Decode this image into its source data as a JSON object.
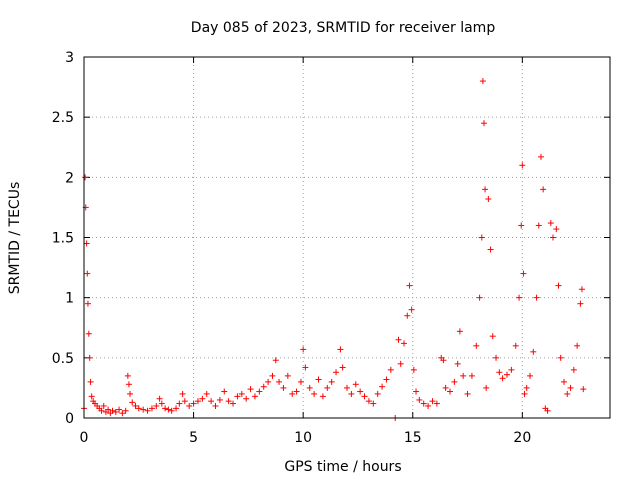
{
  "chart_data": {
    "type": "scatter",
    "title": "Day 085 of 2023, SRMTID for receiver lamp",
    "xlabel": "GPS time / hours",
    "ylabel": "SRMTID / TECUs",
    "xlim": [
      0,
      24
    ],
    "ylim": [
      0,
      3
    ],
    "xticks": [
      0,
      5,
      10,
      15,
      20
    ],
    "xtick_labels": [
      "0",
      "5",
      "10",
      "15",
      "20"
    ],
    "yticks": [
      0,
      0.5,
      1,
      1.5,
      2,
      2.5,
      3
    ],
    "ytick_labels": [
      "0",
      "0.5",
      "1",
      "1.5",
      "2",
      "2.5",
      "3"
    ],
    "grid": true,
    "marker": "+",
    "color": "#ff0000",
    "series": [
      {
        "name": "SRMTID",
        "points": [
          [
            0.0,
            0.08
          ],
          [
            0.05,
            2.0
          ],
          [
            0.08,
            1.75
          ],
          [
            0.12,
            1.45
          ],
          [
            0.15,
            1.2
          ],
          [
            0.18,
            0.95
          ],
          [
            0.22,
            0.7
          ],
          [
            0.26,
            0.5
          ],
          [
            0.3,
            0.3
          ],
          [
            0.35,
            0.18
          ],
          [
            0.42,
            0.14
          ],
          [
            0.5,
            0.12
          ],
          [
            0.6,
            0.1
          ],
          [
            0.7,
            0.08
          ],
          [
            0.8,
            0.06
          ],
          [
            0.9,
            0.1
          ],
          [
            1.0,
            0.05
          ],
          [
            1.1,
            0.07
          ],
          [
            1.2,
            0.04
          ],
          [
            1.3,
            0.06
          ],
          [
            1.45,
            0.05
          ],
          [
            1.6,
            0.07
          ],
          [
            1.75,
            0.04
          ],
          [
            1.9,
            0.06
          ],
          [
            2.0,
            0.35
          ],
          [
            2.05,
            0.28
          ],
          [
            2.1,
            0.2
          ],
          [
            2.2,
            0.13
          ],
          [
            2.35,
            0.1
          ],
          [
            2.5,
            0.08
          ],
          [
            2.7,
            0.07
          ],
          [
            2.9,
            0.06
          ],
          [
            3.1,
            0.08
          ],
          [
            3.3,
            0.1
          ],
          [
            3.45,
            0.16
          ],
          [
            3.55,
            0.12
          ],
          [
            3.7,
            0.08
          ],
          [
            3.85,
            0.07
          ],
          [
            4.0,
            0.06
          ],
          [
            4.2,
            0.08
          ],
          [
            4.35,
            0.12
          ],
          [
            4.5,
            0.2
          ],
          [
            4.6,
            0.14
          ],
          [
            4.8,
            0.1
          ],
          [
            5.0,
            0.12
          ],
          [
            5.2,
            0.14
          ],
          [
            5.4,
            0.16
          ],
          [
            5.6,
            0.2
          ],
          [
            5.8,
            0.14
          ],
          [
            6.0,
            0.1
          ],
          [
            6.2,
            0.15
          ],
          [
            6.4,
            0.22
          ],
          [
            6.6,
            0.14
          ],
          [
            6.8,
            0.12
          ],
          [
            7.0,
            0.18
          ],
          [
            7.2,
            0.2
          ],
          [
            7.4,
            0.16
          ],
          [
            7.6,
            0.24
          ],
          [
            7.8,
            0.18
          ],
          [
            8.0,
            0.22
          ],
          [
            8.2,
            0.26
          ],
          [
            8.4,
            0.3
          ],
          [
            8.6,
            0.35
          ],
          [
            8.75,
            0.48
          ],
          [
            8.9,
            0.3
          ],
          [
            9.1,
            0.25
          ],
          [
            9.3,
            0.35
          ],
          [
            9.5,
            0.2
          ],
          [
            9.7,
            0.22
          ],
          [
            9.9,
            0.3
          ],
          [
            10.0,
            0.57
          ],
          [
            10.1,
            0.42
          ],
          [
            10.3,
            0.25
          ],
          [
            10.5,
            0.2
          ],
          [
            10.7,
            0.32
          ],
          [
            10.9,
            0.18
          ],
          [
            11.1,
            0.25
          ],
          [
            11.3,
            0.3
          ],
          [
            11.5,
            0.38
          ],
          [
            11.7,
            0.57
          ],
          [
            11.8,
            0.42
          ],
          [
            12.0,
            0.25
          ],
          [
            12.2,
            0.2
          ],
          [
            12.4,
            0.28
          ],
          [
            12.6,
            0.22
          ],
          [
            12.8,
            0.18
          ],
          [
            13.0,
            0.14
          ],
          [
            13.2,
            0.12
          ],
          [
            13.4,
            0.2
          ],
          [
            13.6,
            0.26
          ],
          [
            13.8,
            0.32
          ],
          [
            14.0,
            0.4
          ],
          [
            14.2,
            0.0
          ],
          [
            14.35,
            0.65
          ],
          [
            14.45,
            0.45
          ],
          [
            14.6,
            0.62
          ],
          [
            14.75,
            0.85
          ],
          [
            14.85,
            1.1
          ],
          [
            14.95,
            0.9
          ],
          [
            15.05,
            0.4
          ],
          [
            15.15,
            0.22
          ],
          [
            15.3,
            0.15
          ],
          [
            15.5,
            0.12
          ],
          [
            15.7,
            0.1
          ],
          [
            15.9,
            0.14
          ],
          [
            16.1,
            0.12
          ],
          [
            16.3,
            0.5
          ],
          [
            16.4,
            0.48
          ],
          [
            16.5,
            0.25
          ],
          [
            16.7,
            0.22
          ],
          [
            16.9,
            0.3
          ],
          [
            17.05,
            0.45
          ],
          [
            17.15,
            0.72
          ],
          [
            17.3,
            0.35
          ],
          [
            17.5,
            0.2
          ],
          [
            17.7,
            0.35
          ],
          [
            17.9,
            0.6
          ],
          [
            18.05,
            1.0
          ],
          [
            18.15,
            1.5
          ],
          [
            18.2,
            2.8
          ],
          [
            18.25,
            2.45
          ],
          [
            18.3,
            1.9
          ],
          [
            18.35,
            0.25
          ],
          [
            18.45,
            1.82
          ],
          [
            18.55,
            1.4
          ],
          [
            18.65,
            0.68
          ],
          [
            18.8,
            0.5
          ],
          [
            18.95,
            0.38
          ],
          [
            19.1,
            0.33
          ],
          [
            19.3,
            0.36
          ],
          [
            19.5,
            0.4
          ],
          [
            19.7,
            0.6
          ],
          [
            19.85,
            1.0
          ],
          [
            19.95,
            1.6
          ],
          [
            20.0,
            2.1
          ],
          [
            20.05,
            1.2
          ],
          [
            20.1,
            0.2
          ],
          [
            20.2,
            0.25
          ],
          [
            20.35,
            0.35
          ],
          [
            20.5,
            0.55
          ],
          [
            20.65,
            1.0
          ],
          [
            20.75,
            1.6
          ],
          [
            20.85,
            2.17
          ],
          [
            20.95,
            1.9
          ],
          [
            21.05,
            0.08
          ],
          [
            21.15,
            0.06
          ],
          [
            21.3,
            1.62
          ],
          [
            21.4,
            1.5
          ],
          [
            21.55,
            1.57
          ],
          [
            21.65,
            1.1
          ],
          [
            21.75,
            0.5
          ],
          [
            21.9,
            0.3
          ],
          [
            22.05,
            0.2
          ],
          [
            22.2,
            0.25
          ],
          [
            22.35,
            0.4
          ],
          [
            22.5,
            0.6
          ],
          [
            22.65,
            0.95
          ],
          [
            22.72,
            1.07
          ],
          [
            22.78,
            0.24
          ]
        ]
      }
    ]
  }
}
